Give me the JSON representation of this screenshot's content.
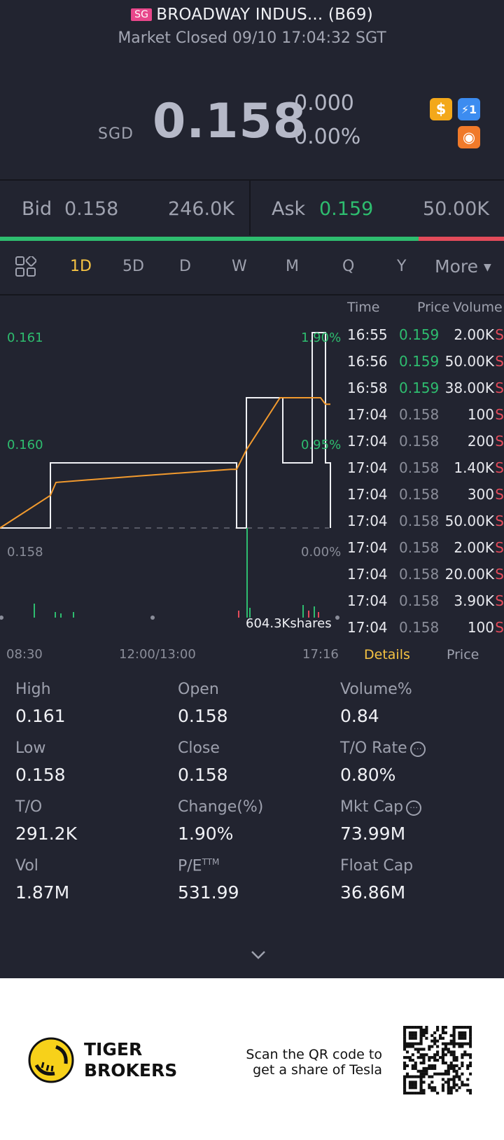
{
  "header": {
    "market_badge": "SG",
    "title": "BROADWAY INDUS... (B69)",
    "status": "Market Closed 09/10 17:04:32 SGT"
  },
  "quote": {
    "currency": "SGD",
    "price": "0.158",
    "change": "0.000",
    "change_pct": "0.00%"
  },
  "icons": {
    "dollar": "$",
    "flash": "⚡1",
    "chart": "◉"
  },
  "bidask": {
    "bid_label": "Bid",
    "bid_price": "0.158",
    "bid_size": "246.0K",
    "ask_label": "Ask",
    "ask_price": "0.159",
    "ask_size": "50.00K",
    "bid_ratio": 0.83,
    "bid_color": "#2ebd6f",
    "ask_color": "#e34b5a"
  },
  "tabs": {
    "items": [
      "1D",
      "5D",
      "D",
      "W",
      "M",
      "Q",
      "Y"
    ],
    "active": "1D",
    "more": "More"
  },
  "chart": {
    "y_high": "0.161",
    "y_mid": "0.160",
    "y_base": "0.158",
    "pct_high": "1.90%",
    "pct_mid": "0.95%",
    "pct_base": "0.00%",
    "volume_label": "604.3Kshares",
    "x_start": "08:30",
    "x_mid": "12:00/13:00",
    "x_end": "17:16"
  },
  "chart_data": {
    "type": "line",
    "series": [
      {
        "values": [
          0.158,
          0.159,
          0.159,
          0.159,
          0.159,
          0.158,
          0.16,
          0.16,
          0.159,
          0.159,
          0.161,
          0.161,
          0.159,
          0.158
        ]
      },
      {
        "values": [
          0.158,
          0.1585,
          0.1587,
          0.1588,
          0.1589,
          0.1589,
          0.1592,
          0.16,
          0.16,
          0.16,
          0.16,
          0.16,
          0.1599,
          0.1599
        ]
      }
    ],
    "ylim": [
      0.158,
      0.161
    ]
  },
  "trades": {
    "headers": {
      "time": "Time",
      "price": "Price",
      "volume": "Volume"
    },
    "rows": [
      {
        "time": "16:55",
        "price": "0.159",
        "volume": "2.00K",
        "side": "S",
        "color": "green"
      },
      {
        "time": "16:56",
        "price": "0.159",
        "volume": "50.00K",
        "side": "S",
        "color": "green"
      },
      {
        "time": "16:58",
        "price": "0.159",
        "volume": "38.00K",
        "side": "S",
        "color": "green"
      },
      {
        "time": "17:04",
        "price": "0.158",
        "volume": "100",
        "side": "S",
        "color": "gray"
      },
      {
        "time": "17:04",
        "price": "0.158",
        "volume": "200",
        "side": "S",
        "color": "gray"
      },
      {
        "time": "17:04",
        "price": "0.158",
        "volume": "1.40K",
        "side": "S",
        "color": "gray"
      },
      {
        "time": "17:04",
        "price": "0.158",
        "volume": "300",
        "side": "S",
        "color": "gray"
      },
      {
        "time": "17:04",
        "price": "0.158",
        "volume": "50.00K",
        "side": "S",
        "color": "gray"
      },
      {
        "time": "17:04",
        "price": "0.158",
        "volume": "2.00K",
        "side": "S",
        "color": "gray"
      },
      {
        "time": "17:04",
        "price": "0.158",
        "volume": "20.00K",
        "side": "S",
        "color": "gray"
      },
      {
        "time": "17:04",
        "price": "0.158",
        "volume": "3.90K",
        "side": "S",
        "color": "gray"
      },
      {
        "time": "17:04",
        "price": "0.158",
        "volume": "100",
        "side": "S",
        "color": "gray"
      }
    ],
    "tab_details": "Details",
    "tab_price": "Price"
  },
  "stats": [
    {
      "label": "High",
      "value": "0.161"
    },
    {
      "label": "Open",
      "value": "0.158"
    },
    {
      "label": "Volume%",
      "value": "0.84"
    },
    {
      "label": "Low",
      "value": "0.158"
    },
    {
      "label": "Close",
      "value": "0.158"
    },
    {
      "label": "T/O Rate",
      "value": "0.80%"
    },
    {
      "label": "T/O",
      "value": "291.2K"
    },
    {
      "label": "Change(%)",
      "value": "1.90%"
    },
    {
      "label": "Mkt Cap",
      "value": "73.99M"
    },
    {
      "label": "Vol",
      "value": "1.87M"
    },
    {
      "label": "P/E",
      "value": "531.99",
      "sup": "TTM"
    },
    {
      "label": "Float Cap",
      "value": "36.86M"
    }
  ],
  "footer": {
    "brand_line1": "TIGER",
    "brand_line2": "BROKERS",
    "promo_line1": "Scan the QR code to",
    "promo_line2": "get a share of Tesla"
  }
}
